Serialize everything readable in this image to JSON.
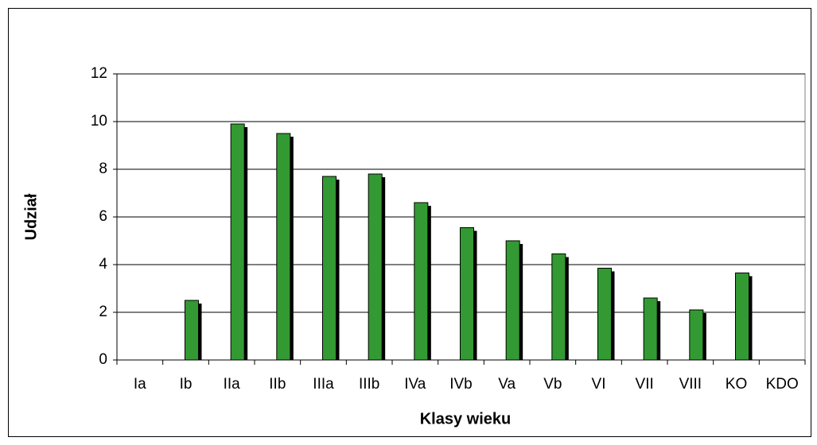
{
  "chart_data": {
    "type": "bar",
    "x_label": "Klasy wieku",
    "y_label": "Udział",
    "categories": [
      "Ia",
      "Ib",
      "IIa",
      "IIb",
      "IIIa",
      "IIIb",
      "IVa",
      "IVb",
      "Va",
      "Vb",
      "VI",
      "VII",
      "VIII",
      "KO",
      "KDO"
    ],
    "values": [
      0,
      2.5,
      9.9,
      9.5,
      7.7,
      7.8,
      6.6,
      5.55,
      5.0,
      4.45,
      3.85,
      2.6,
      2.1,
      3.65,
      0
    ],
    "color": "#339933",
    "ylim": [
      0,
      12
    ],
    "yticks": [
      0,
      2,
      4,
      6,
      8,
      10,
      12
    ],
    "grid": true
  }
}
